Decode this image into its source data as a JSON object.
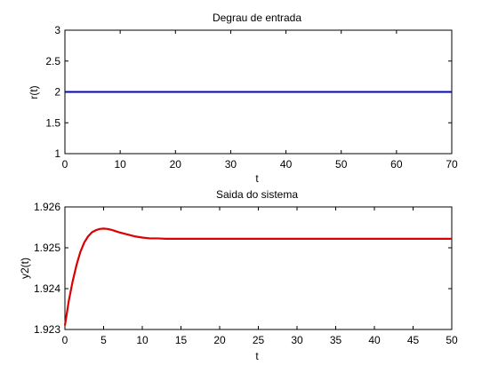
{
  "chart_data": [
    {
      "type": "line",
      "title": "Degrau de entrada",
      "xlabel": "t",
      "ylabel": "r(t)",
      "xlim": [
        0,
        70
      ],
      "ylim": [
        1,
        3
      ],
      "xticks": [
        0,
        10,
        20,
        30,
        40,
        50,
        60,
        70
      ],
      "yticks": [
        1,
        1.5,
        2,
        2.5,
        3
      ],
      "xtick_labels": [
        "0",
        "10",
        "20",
        "30",
        "40",
        "50",
        "60",
        "70"
      ],
      "ytick_labels": [
        "1",
        "1.5",
        "2",
        "2.5",
        "3"
      ],
      "grid": false,
      "series": [
        {
          "color": "#0000cc",
          "x": [
            0,
            70
          ],
          "y": [
            2,
            2
          ]
        }
      ]
    },
    {
      "type": "line",
      "title": "Saida do sistema",
      "xlabel": "t",
      "ylabel": "y2(t)",
      "xlim": [
        0,
        50
      ],
      "ylim": [
        1.923,
        1.926
      ],
      "xticks": [
        0,
        5,
        10,
        15,
        20,
        25,
        30,
        35,
        40,
        45,
        50
      ],
      "yticks": [
        1.923,
        1.924,
        1.925,
        1.926
      ],
      "xtick_labels": [
        "0",
        "5",
        "10",
        "15",
        "20",
        "25",
        "30",
        "35",
        "40",
        "45",
        "50"
      ],
      "ytick_labels": [
        "1.923",
        "1.924",
        "1.925",
        "1.926"
      ],
      "grid": false,
      "series": [
        {
          "color": "#dd0000",
          "x": [
            0,
            0.5,
            1,
            1.5,
            2,
            2.5,
            3,
            3.5,
            4,
            4.5,
            5,
            5.5,
            6,
            7,
            8,
            9,
            10,
            11,
            12,
            13,
            14,
            15,
            17,
            20,
            25,
            30,
            35,
            40,
            45,
            50
          ],
          "y": [
            1.9231,
            1.9237,
            1.92418,
            1.92458,
            1.9249,
            1.92513,
            1.92528,
            1.92538,
            1.92543,
            1.92546,
            1.92547,
            1.92546,
            1.92544,
            1.92538,
            1.92533,
            1.92528,
            1.92525,
            1.92523,
            1.92523,
            1.92522,
            1.92522,
            1.92522,
            1.92522,
            1.92522,
            1.92522,
            1.92522,
            1.92522,
            1.92522,
            1.92522,
            1.92522
          ]
        }
      ]
    }
  ]
}
